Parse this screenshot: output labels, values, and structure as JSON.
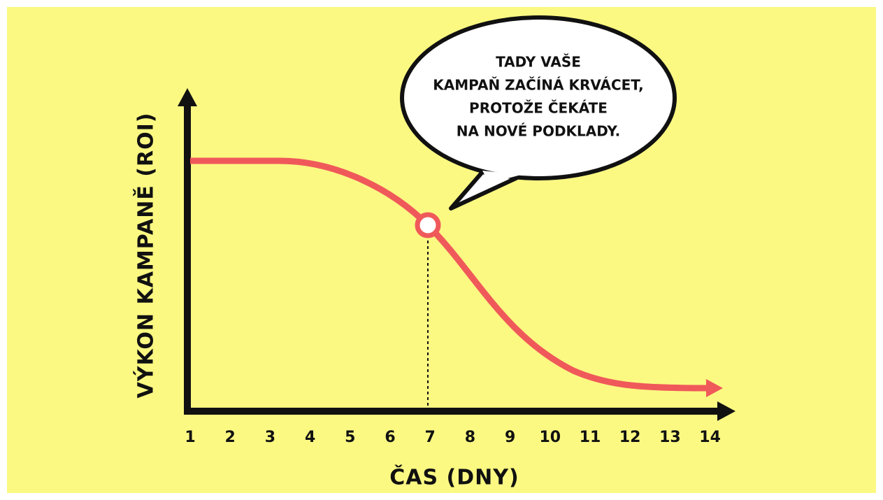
{
  "y_axis": {
    "label": "VÝKON KAMPANĚ (ROI)"
  },
  "x_axis": {
    "label": "ČAS (DNY)",
    "ticks": [
      "1",
      "2",
      "3",
      "4",
      "5",
      "6",
      "7",
      "8",
      "9",
      "10",
      "11",
      "12",
      "13",
      "14"
    ]
  },
  "callout": {
    "lines": [
      "TADY VAŠE",
      "KAMPAŇ ZAČÍNÁ KRVÁCET,",
      "PROTOŽE ČEKÁTE",
      "NA NOVÉ PODKLADY."
    ]
  }
}
